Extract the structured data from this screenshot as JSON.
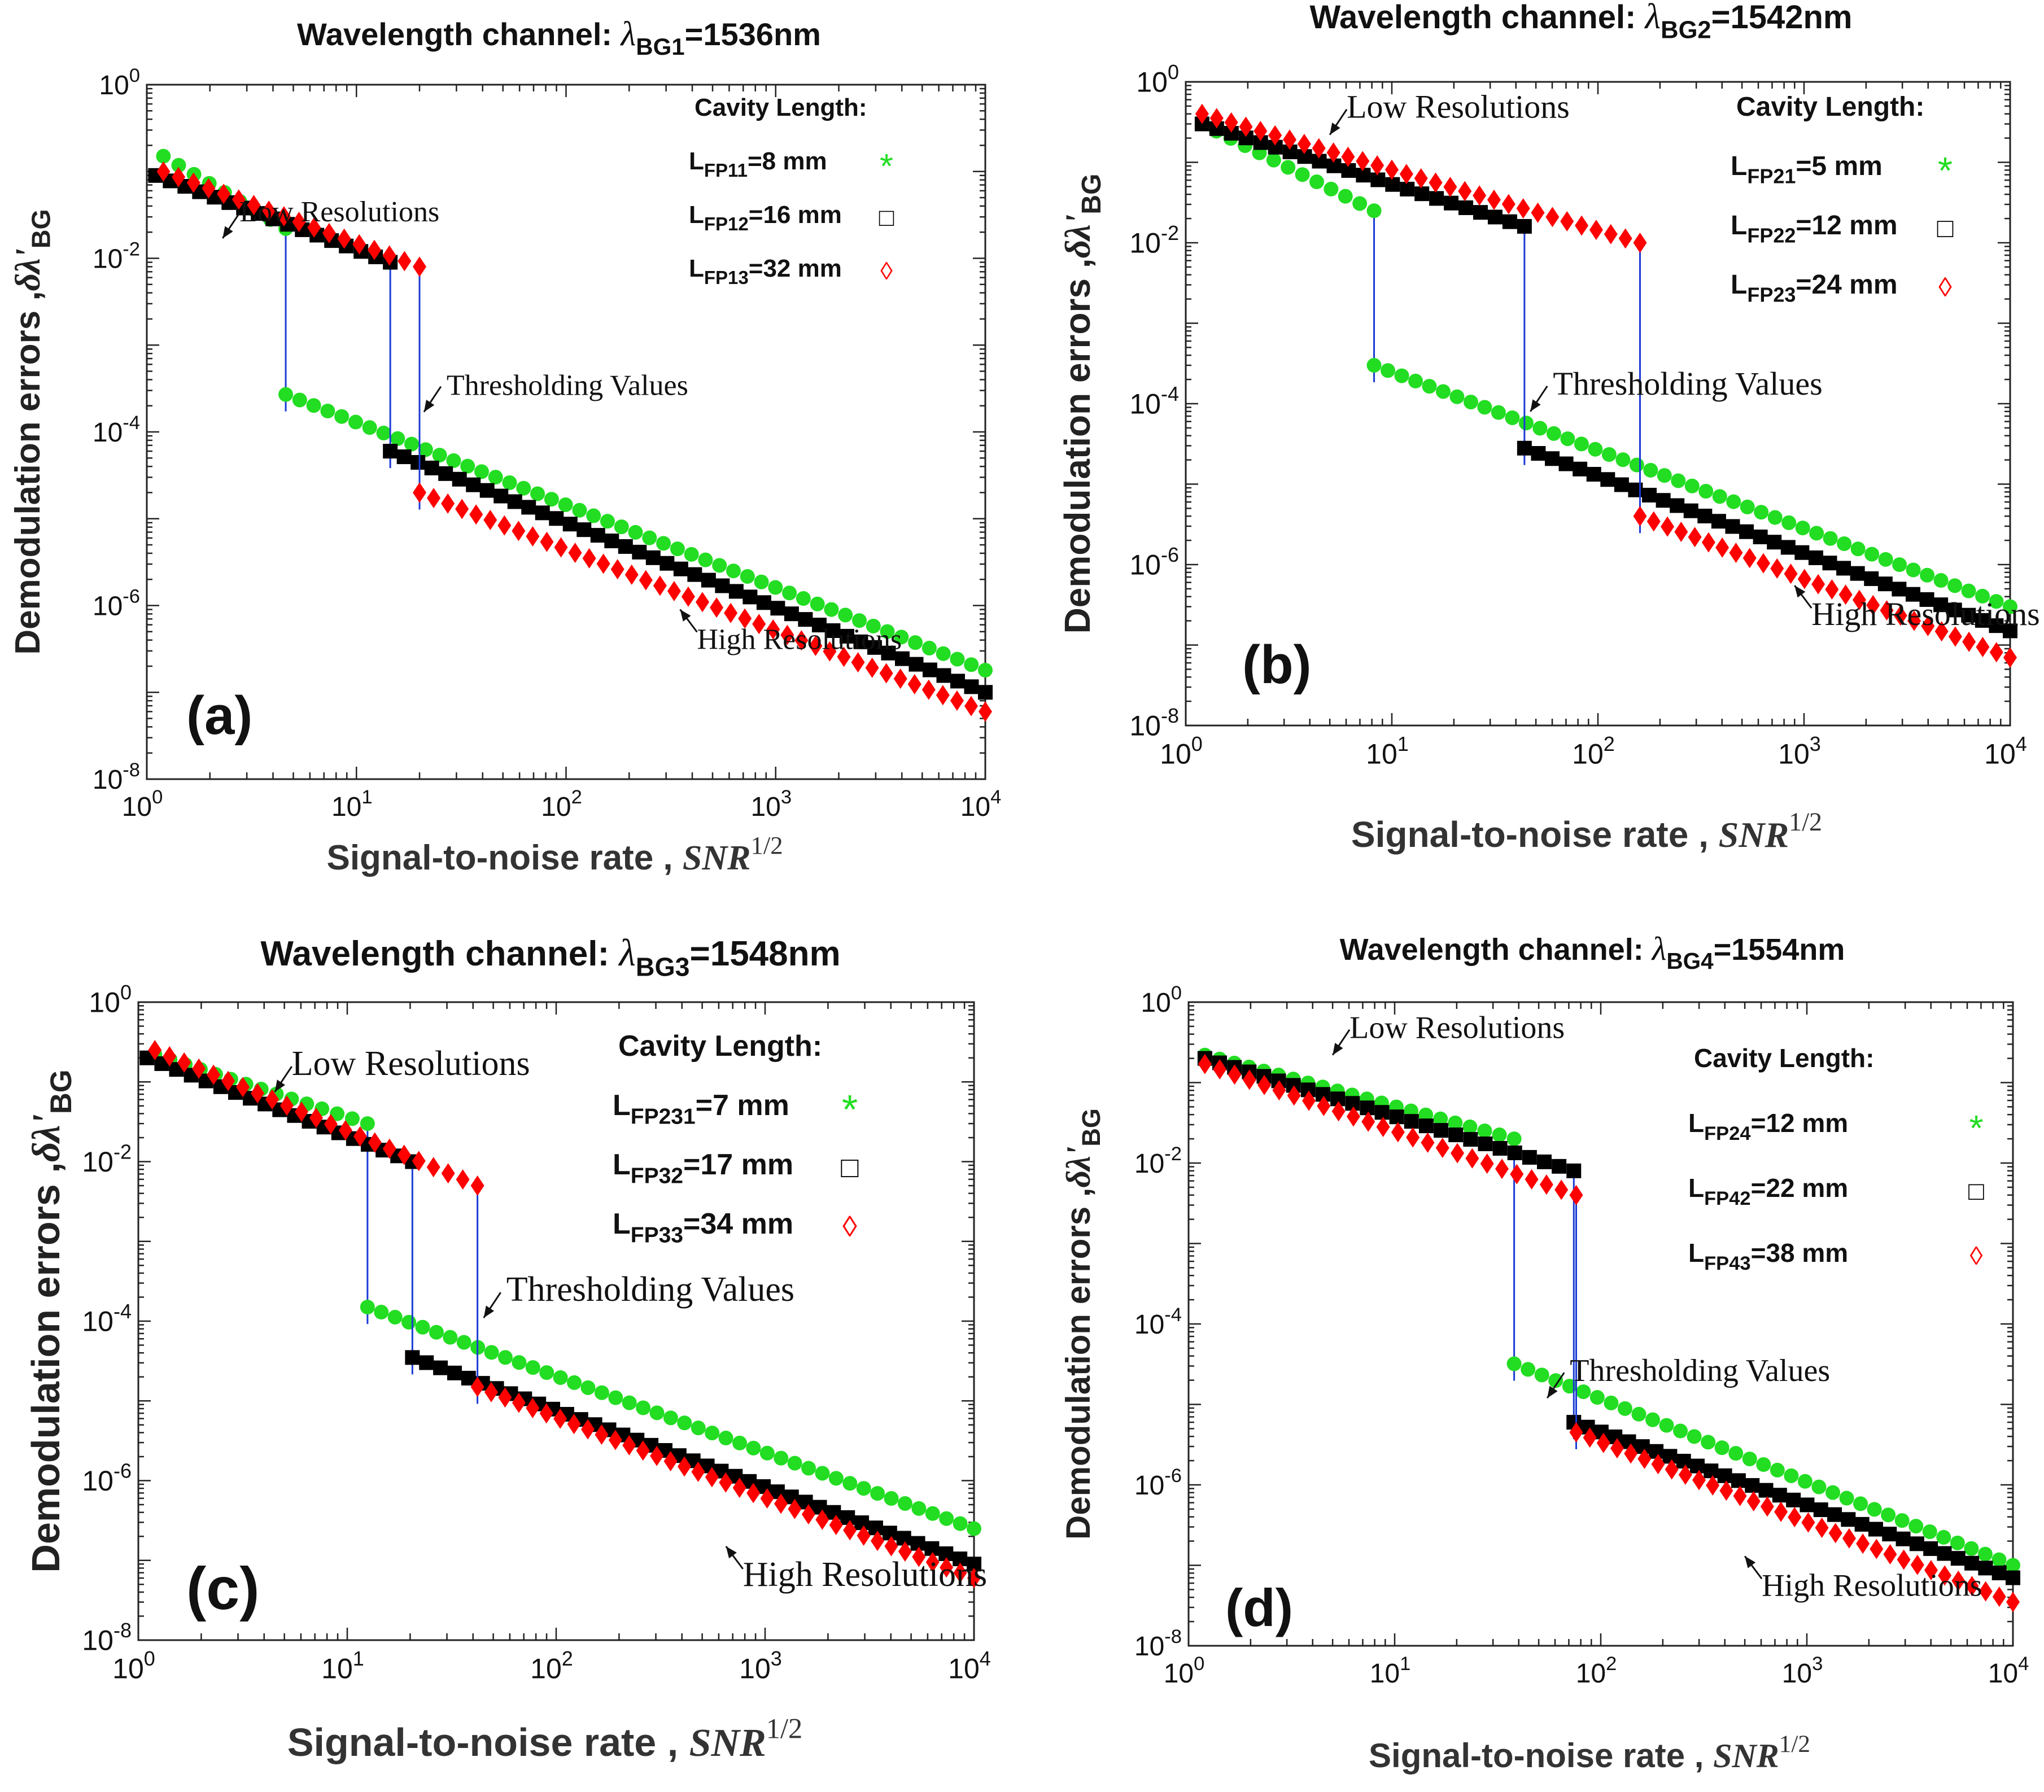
{
  "figure": {
    "description_free": true
  },
  "chart_data": [
    {
      "type": "scatter",
      "panel_label": "(a)",
      "title_prefix": "Wavelength channel: ",
      "title_lambda": "λ",
      "title_sub": "BG1",
      "title_suffix": "=1536nm",
      "ylabel": "Demodulation errors ,",
      "ylabel_symbol": "δλ'",
      "ylabel_sub": "BG",
      "xlabel": "Signal-to-noise rate ,",
      "xlabel_symbol": "SNR",
      "xlabel_sup": "1/2",
      "x_scale": "log",
      "y_scale": "log",
      "xlim": [
        1,
        10000
      ],
      "ylim": [
        1e-08,
        1
      ],
      "x_ticks": [
        {
          "base": "10",
          "exp": "0"
        },
        {
          "base": "10",
          "exp": "1"
        },
        {
          "base": "10",
          "exp": "2"
        },
        {
          "base": "10",
          "exp": "3"
        },
        {
          "base": "10",
          "exp": "4"
        }
      ],
      "y_ticks": [
        {
          "base": "10",
          "exp": "-8"
        },
        {
          "base": "10",
          "exp": "-6"
        },
        {
          "base": "10",
          "exp": "-4"
        },
        {
          "base": "10",
          "exp": "-2"
        },
        {
          "base": "10",
          "exp": "0"
        }
      ],
      "legend_title": "Cavity Length:",
      "legend": [
        {
          "prefix": "L",
          "sub": "FP11",
          "value": "=8 mm",
          "marker": "*",
          "color": "#22dd22"
        },
        {
          "prefix": "L",
          "sub": "FP12",
          "value": "=16 mm",
          "marker": "□",
          "color": "#000000"
        },
        {
          "prefix": "L",
          "sub": "FP13",
          "value": "=32 mm",
          "marker": "◊",
          "color": "#ff0000"
        }
      ],
      "annotations": [
        {
          "text": "Low Resolutions",
          "x": 2.3,
          "y": 0.017
        },
        {
          "text": "Thresholding Values",
          "x": 21,
          "y": 0.00017
        },
        {
          "text": "High Resolutions",
          "x": 350,
          "y": 9e-07
        }
      ],
      "series": [
        {
          "name": "LFP11=8 mm",
          "color": "#22dd22",
          "marker": "circle",
          "threshold": 4.6,
          "low": {
            "x_start": 1.2,
            "y_start": 0.15,
            "y_end": 0.022
          },
          "high": {
            "y_start": 0.00027,
            "y_end": 1.8e-07
          }
        },
        {
          "name": "LFP12=16 mm",
          "color": "#000000",
          "marker": "square",
          "threshold": 14.5,
          "low": {
            "x_start": 1.1,
            "y_start": 0.09,
            "y_end": 0.009
          },
          "high": {
            "y_start": 6e-05,
            "y_end": 1e-07
          }
        },
        {
          "name": "LFP13=32 mm",
          "color": "#ff0000",
          "marker": "diamond",
          "threshold": 20,
          "low": {
            "x_start": 1.2,
            "y_start": 0.1,
            "y_end": 0.008
          },
          "high": {
            "y_start": 2e-05,
            "y_end": 6e-08
          }
        }
      ]
    },
    {
      "type": "scatter",
      "panel_label": "(b)",
      "title_prefix": "Wavelength channel: ",
      "title_lambda": "λ",
      "title_sub": "BG2",
      "title_suffix": "=1542nm",
      "ylabel": "Demodulation errors ,",
      "ylabel_symbol": "δλ'",
      "ylabel_sub": "BG",
      "xlabel": "Signal-to-noise rate ,",
      "xlabel_symbol": "SNR",
      "xlabel_sup": "1/2",
      "x_scale": "log",
      "y_scale": "log",
      "xlim": [
        1,
        10000
      ],
      "ylim": [
        1e-08,
        1
      ],
      "x_ticks": [
        {
          "base": "10",
          "exp": "0"
        },
        {
          "base": "10",
          "exp": "1"
        },
        {
          "base": "10",
          "exp": "2"
        },
        {
          "base": "10",
          "exp": "3"
        },
        {
          "base": "10",
          "exp": "4"
        }
      ],
      "y_ticks": [
        {
          "base": "10",
          "exp": "-8"
        },
        {
          "base": "10",
          "exp": "-6"
        },
        {
          "base": "10",
          "exp": "-4"
        },
        {
          "base": "10",
          "exp": "-2"
        },
        {
          "base": "10",
          "exp": "0"
        }
      ],
      "legend_title": "Cavity Length:",
      "legend": [
        {
          "prefix": "L",
          "sub": "FP21",
          "value": "=5 mm",
          "marker": "*",
          "color": "#22dd22"
        },
        {
          "prefix": "L",
          "sub": "FP22",
          "value": "=12 mm",
          "marker": "□",
          "color": "#000000"
        },
        {
          "prefix": "L",
          "sub": "FP23",
          "value": "=24 mm",
          "marker": "◊",
          "color": "#ff0000"
        }
      ],
      "annotations": [
        {
          "text": "Low Resolutions",
          "x": 5,
          "y": 0.22
        },
        {
          "text": "Thresholding Values",
          "x": 47,
          "y": 8e-05
        },
        {
          "text": "High Resolutions",
          "x": 900,
          "y": 5.5e-07
        }
      ],
      "series": [
        {
          "name": "LFP21=5 mm",
          "color": "#22dd22",
          "marker": "circle",
          "threshold": 8.2,
          "low": {
            "x_start": 1.2,
            "y_start": 0.3,
            "y_end": 0.025
          },
          "high": {
            "y_start": 0.0003,
            "y_end": 3e-07
          }
        },
        {
          "name": "LFP22=12 mm",
          "color": "#000000",
          "marker": "square",
          "threshold": 44,
          "low": {
            "x_start": 1.2,
            "y_start": 0.3,
            "y_end": 0.016
          },
          "high": {
            "y_start": 2.8e-05,
            "y_end": 1.5e-07
          }
        },
        {
          "name": "LFP23=24 mm",
          "color": "#ff0000",
          "marker": "diamond",
          "threshold": 160,
          "low": {
            "x_start": 1.2,
            "y_start": 0.4,
            "y_end": 0.01
          },
          "high": {
            "y_start": 4e-06,
            "y_end": 7e-08
          }
        }
      ]
    },
    {
      "type": "scatter",
      "panel_label": "(c)",
      "title_prefix": "Wavelength channel: ",
      "title_lambda": "λ",
      "title_sub": "BG3",
      "title_suffix": "=1548nm",
      "ylabel": "Demodulation errors ,",
      "ylabel_symbol": "δλ'",
      "ylabel_sub": "BG",
      "xlabel": "Signal-to-noise rate ,",
      "xlabel_symbol": "SNR",
      "xlabel_sup": "1/2",
      "x_scale": "log",
      "y_scale": "log",
      "xlim": [
        1,
        10000
      ],
      "ylim": [
        1e-08,
        1
      ],
      "x_ticks": [
        {
          "base": "10",
          "exp": "0"
        },
        {
          "base": "10",
          "exp": "1"
        },
        {
          "base": "10",
          "exp": "2"
        },
        {
          "base": "10",
          "exp": "3"
        },
        {
          "base": "10",
          "exp": "4"
        }
      ],
      "y_ticks": [
        {
          "base": "10",
          "exp": "-8"
        },
        {
          "base": "10",
          "exp": "-6"
        },
        {
          "base": "10",
          "exp": "-4"
        },
        {
          "base": "10",
          "exp": "-2"
        },
        {
          "base": "10",
          "exp": "0"
        }
      ],
      "legend_title": "Cavity Length:",
      "legend": [
        {
          "prefix": "L",
          "sub": "FP231",
          "value": "=7 mm",
          "marker": "*",
          "color": "#22dd22"
        },
        {
          "prefix": "L",
          "sub": "FP32",
          "value": "=17 mm",
          "marker": "□",
          "color": "#000000"
        },
        {
          "prefix": "L",
          "sub": "FP33",
          "value": "=34 mm",
          "marker": "◊",
          "color": "#ff0000"
        }
      ],
      "annotations": [
        {
          "text": "Low Resolutions",
          "x": 4.5,
          "y": 0.075
        },
        {
          "text": "Thresholding Values",
          "x": 45,
          "y": 0.00011
        },
        {
          "text": "High Resolutions",
          "x": 650,
          "y": 1.5e-07
        }
      ],
      "series": [
        {
          "name": "LFP231=7 mm",
          "color": "#22dd22",
          "marker": "circle",
          "threshold": 12.5,
          "low": {
            "x_start": 1.2,
            "y_start": 0.22,
            "y_end": 0.03
          },
          "high": {
            "y_start": 0.00015,
            "y_end": 2.5e-07
          }
        },
        {
          "name": "LFP32=17 mm",
          "color": "#000000",
          "marker": "square",
          "threshold": 20.5,
          "low": {
            "x_start": 1.1,
            "y_start": 0.2,
            "y_end": 0.01
          },
          "high": {
            "y_start": 3.5e-05,
            "y_end": 9e-08
          }
        },
        {
          "name": "LFP33=34 mm",
          "color": "#ff0000",
          "marker": "diamond",
          "threshold": 42,
          "low": {
            "x_start": 1.2,
            "y_start": 0.25,
            "y_end": 0.005
          },
          "high": {
            "y_start": 1.5e-05,
            "y_end": 6e-08
          }
        }
      ]
    },
    {
      "type": "scatter",
      "panel_label": "(d)",
      "title_prefix": "Wavelength channel: ",
      "title_lambda": "λ",
      "title_sub": "BG4",
      "title_suffix": "=1554nm",
      "ylabel": "Demodulation errors ,",
      "ylabel_symbol": "δλ'",
      "ylabel_sub": "BG",
      "xlabel": "Signal-to-noise rate ,",
      "xlabel_symbol": "SNR",
      "xlabel_sup": "1/2",
      "x_scale": "log",
      "y_scale": "log",
      "xlim": [
        1,
        10000
      ],
      "ylim": [
        1e-08,
        1
      ],
      "x_ticks": [
        {
          "base": "10",
          "exp": "0"
        },
        {
          "base": "10",
          "exp": "1"
        },
        {
          "base": "10",
          "exp": "2"
        },
        {
          "base": "10",
          "exp": "3"
        },
        {
          "base": "10",
          "exp": "4"
        }
      ],
      "y_ticks": [
        {
          "base": "10",
          "exp": "-8"
        },
        {
          "base": "10",
          "exp": "-6"
        },
        {
          "base": "10",
          "exp": "-4"
        },
        {
          "base": "10",
          "exp": "-2"
        },
        {
          "base": "10",
          "exp": "0"
        }
      ],
      "legend_title": "Cavity Length:",
      "legend": [
        {
          "prefix": "L",
          "sub": "FP24",
          "value": "=12 mm",
          "marker": "*",
          "color": "#22dd22"
        },
        {
          "prefix": "L",
          "sub": "FP42",
          "value": "=22 mm",
          "marker": "□",
          "color": "#000000"
        },
        {
          "prefix": "L",
          "sub": "FP43",
          "value": "=38 mm",
          "marker": "◊",
          "color": "#ff0000"
        }
      ],
      "annotations": [
        {
          "text": "Low Resolutions",
          "x": 5,
          "y": 0.22
        },
        {
          "text": "Thresholding Values",
          "x": 55,
          "y": 1.2e-05
        },
        {
          "text": "High Resolutions",
          "x": 500,
          "y": 1.3e-07
        }
      ],
      "series": [
        {
          "name": "LFP24=12 mm",
          "color": "#22dd22",
          "marker": "circle",
          "threshold": 38,
          "low": {
            "x_start": 1.2,
            "y_start": 0.22,
            "y_end": 0.02
          },
          "high": {
            "y_start": 3.2e-05,
            "y_end": 1e-07
          }
        },
        {
          "name": "LFP42=22 mm",
          "color": "#000000",
          "marker": "square",
          "threshold": 74,
          "low": {
            "x_start": 1.2,
            "y_start": 0.2,
            "y_end": 0.008
          },
          "high": {
            "y_start": 6e-06,
            "y_end": 7e-08
          }
        },
        {
          "name": "LFP43=38 mm",
          "color": "#ff0000",
          "marker": "diamond",
          "threshold": 76,
          "low": {
            "x_start": 1.2,
            "y_start": 0.17,
            "y_end": 0.004
          },
          "high": {
            "y_start": 4.5e-06,
            "y_end": 3.5e-08
          }
        }
      ]
    }
  ]
}
